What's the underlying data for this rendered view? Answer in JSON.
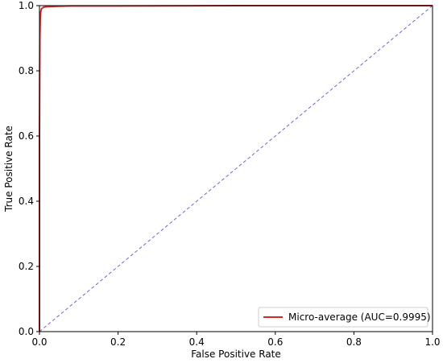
{
  "chart_data": {
    "type": "line",
    "xlabel": "False Positive Rate",
    "ylabel": "True Positive Rate",
    "xlim": [
      0.0,
      1.0
    ],
    "ylim": [
      0.0,
      1.0
    ],
    "x_ticks": [
      "0.0",
      "0.2",
      "0.4",
      "0.6",
      "0.8",
      "1.0"
    ],
    "y_ticks": [
      "0.0",
      "0.2",
      "0.4",
      "0.6",
      "0.8",
      "1.0"
    ],
    "grid": false,
    "legend_position": "lower-right",
    "series": [
      {
        "name": "Micro-average (AUC=0.9995)",
        "color": "#d62728",
        "style": "solid",
        "x": [
          0.0,
          0.0,
          0.001,
          0.002,
          0.003,
          0.005,
          0.01,
          0.02,
          0.05,
          0.08,
          0.2,
          0.5,
          1.0
        ],
        "y": [
          0.0,
          0.6,
          0.9,
          0.96,
          0.98,
          0.99,
          0.995,
          0.997,
          0.998,
          0.999,
          0.999,
          1.0,
          1.0
        ]
      },
      {
        "name": "",
        "color": "#7b5fd1",
        "style": "dashed",
        "x": [
          0.0,
          1.0
        ],
        "y": [
          0.0,
          1.0
        ]
      }
    ]
  }
}
